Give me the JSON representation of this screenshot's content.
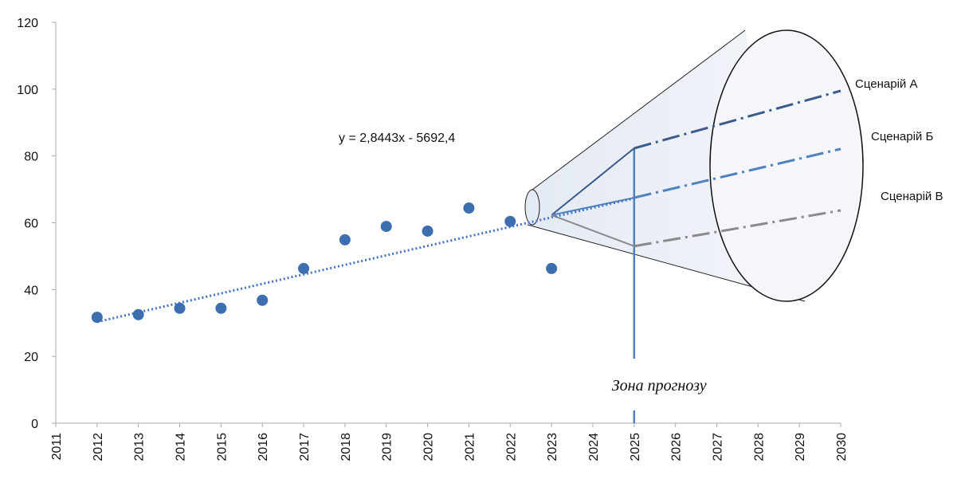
{
  "chart_data": {
    "type": "scatter",
    "x": [
      2012,
      2013,
      2014,
      2015,
      2016,
      2017,
      2018,
      2019,
      2020,
      2021,
      2022,
      2023
    ],
    "values": [
      31.7,
      32.5,
      34.4,
      34.4,
      36.8,
      46.3,
      54.9,
      58.9,
      57.5,
      64.4,
      60.4,
      46.3
    ],
    "color": "#3c6eb0",
    "xlim": [
      2011,
      2030
    ],
    "xticks": [
      2011,
      2012,
      2013,
      2014,
      2015,
      2016,
      2017,
      2018,
      2019,
      2020,
      2021,
      2022,
      2023,
      2024,
      2025,
      2026,
      2027,
      2028,
      2029,
      2030
    ],
    "ylim": [
      0,
      120
    ],
    "yticks": [
      0,
      20,
      40,
      60,
      80,
      100,
      120
    ],
    "grid": false,
    "trendline": {
      "equation": "y = 2,8443x - 5692,4",
      "slope": 2.8443,
      "intercept": -5692.4,
      "color": "#4472c4"
    },
    "forecast_zone": {
      "label": "Зона прогнозу",
      "x": 2025
    },
    "scenarios": [
      {
        "name": "Сценарій А",
        "color": "#3c5a8c",
        "x": [
          2023,
          2025,
          2030
        ],
        "values": [
          62.3,
          82.3,
          99.5
        ]
      },
      {
        "name": "Сценарій Б",
        "color": "#4f81bd",
        "x": [
          2023,
          2025,
          2030
        ],
        "values": [
          62.3,
          67.5,
          82.1
        ]
      },
      {
        "name": "Сценарій В",
        "color": "#8a8a8a",
        "x": [
          2023,
          2025,
          2030
        ],
        "values": [
          62.3,
          53.0,
          63.7
        ]
      }
    ]
  }
}
